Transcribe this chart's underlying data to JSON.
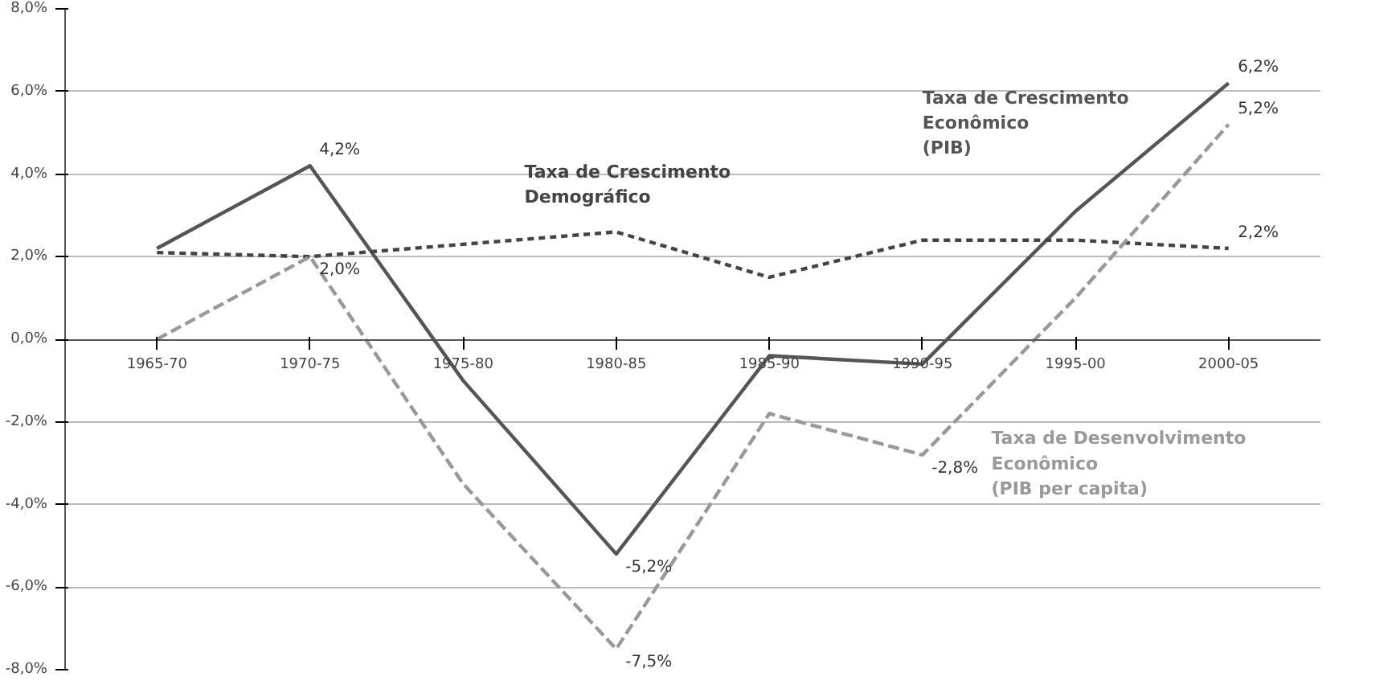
{
  "chart_data": {
    "type": "line",
    "categories": [
      "1965-70",
      "1970-75",
      "1975-80",
      "1980-85",
      "1985-90",
      "1990-95",
      "1995-00",
      "2000-05"
    ],
    "series": [
      {
        "name": "Taxa de Crescimento Econômico (PIB)",
        "color": "#555555",
        "line_style": "solid",
        "values": [
          2.2,
          4.2,
          -1.0,
          -5.2,
          -0.4,
          -0.6,
          3.1,
          6.2
        ],
        "value_labels": [
          null,
          "4,2%",
          null,
          "-5,2%",
          null,
          null,
          null,
          "6,2%"
        ]
      },
      {
        "name": "Taxa de Crescimento Demográfico",
        "color": "#444444",
        "line_style": "dotted",
        "values": [
          2.1,
          2.0,
          2.3,
          2.6,
          1.5,
          2.4,
          2.4,
          2.2
        ],
        "value_labels": [
          null,
          null,
          null,
          null,
          null,
          null,
          null,
          "2,2%"
        ]
      },
      {
        "name": "Taxa de Desenvolvimento Econômico (PIB per capita)",
        "color": "#999999",
        "line_style": "dashed",
        "values": [
          0.0,
          2.0,
          -3.5,
          -7.5,
          -1.8,
          -2.8,
          1.0,
          5.2
        ],
        "value_labels": [
          null,
          "2,0%",
          null,
          "-7,5%",
          null,
          "-2,8%",
          null,
          "5,2%"
        ]
      }
    ],
    "ylim": [
      -8,
      8
    ],
    "yticks": [
      {
        "value": -8,
        "label": "-8,0%"
      },
      {
        "value": -6,
        "label": "-6,0%"
      },
      {
        "value": -4,
        "label": "-4,0%"
      },
      {
        "value": -2,
        "label": "-2,0%"
      },
      {
        "value": 0,
        "label": "0,0%"
      },
      {
        "value": 2,
        "label": "2,0%"
      },
      {
        "value": 4,
        "label": "4,0%"
      },
      {
        "value": 6,
        "label": "6,0%"
      },
      {
        "value": 8,
        "label": "8,0%"
      }
    ],
    "grid": "y",
    "legend": false,
    "marker": "none"
  }
}
